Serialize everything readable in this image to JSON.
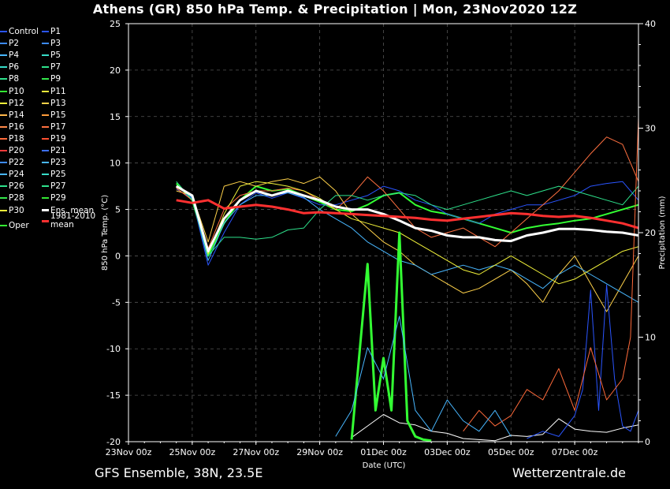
{
  "title": "Athens  (GR)  850 hPa Temp. & Precipitation | Mon, 23Nov2020 12Z",
  "footer": {
    "left": "GFS Ensemble, 38N, 23.5E",
    "right": "Wetterzentrale.de"
  },
  "legend": [
    {
      "label": "Control",
      "color": "#2a55ff"
    },
    {
      "label": "P1",
      "color": "#2a55ff"
    },
    {
      "label": "P2",
      "color": "#3d8bff"
    },
    {
      "label": "P3",
      "color": "#3d8bff"
    },
    {
      "label": "P4",
      "color": "#48b7ff"
    },
    {
      "label": "P5",
      "color": "#37dcc8"
    },
    {
      "label": "P6",
      "color": "#37dcc8"
    },
    {
      "label": "P7",
      "color": "#2ee28c"
    },
    {
      "label": "P8",
      "color": "#2ee28c"
    },
    {
      "label": "P9",
      "color": "#33e64a"
    },
    {
      "label": "P10",
      "color": "#33e633"
    },
    {
      "label": "P11",
      "color": "#f2f23a"
    },
    {
      "label": "P12",
      "color": "#f2f23a"
    },
    {
      "label": "P13",
      "color": "#ffd24a"
    },
    {
      "label": "P14",
      "color": "#ffb84a"
    },
    {
      "label": "P15",
      "color": "#ff9c3a"
    },
    {
      "label": "P16",
      "color": "#ff8a4a"
    },
    {
      "label": "P17",
      "color": "#ff7040"
    },
    {
      "label": "P18",
      "color": "#ff6a3a"
    },
    {
      "label": "P19",
      "color": "#ff5030"
    },
    {
      "label": "P20",
      "color": "#ff3a3a"
    },
    {
      "label": "P21",
      "color": "#3d70ff"
    },
    {
      "label": "P22",
      "color": "#3d8bff"
    },
    {
      "label": "P23",
      "color": "#48b7ff"
    },
    {
      "label": "P24",
      "color": "#48b7ff"
    },
    {
      "label": "P25",
      "color": "#37dcc8"
    },
    {
      "label": "P26",
      "color": "#2ee28c"
    },
    {
      "label": "P27",
      "color": "#2ee28c"
    },
    {
      "label": "P28",
      "color": "#33e64a"
    },
    {
      "label": "P29",
      "color": "#33e633"
    },
    {
      "label": "P30",
      "color": "#f2f23a"
    },
    {
      "label": "Ens. mean",
      "color": "#ffffff"
    },
    {
      "label": "Oper",
      "color": "#33ff33"
    },
    {
      "label": "1981-2010 mean",
      "color": "#ff3030"
    }
  ],
  "chart_data": {
    "type": "line",
    "title": "Athens  (GR)  850 hPa Temp. & Precipitation | Mon, 23Nov2020 12Z",
    "xlabel": "Date (UTC)",
    "ylabel": "850 hPa Temp. (°C)",
    "y2label": "Precipitation (mm)",
    "x_ticks": [
      "23Nov 00z",
      "25Nov 00z",
      "27Nov 00z",
      "29Nov 00z",
      "01Dec 00z",
      "03Dec 00z",
      "05Dec 00z",
      "07Dec 00z"
    ],
    "x_range_hours": [
      0,
      384
    ],
    "ylim": [
      -20,
      25
    ],
    "y_ticks": [
      25,
      20,
      15,
      10,
      5,
      0,
      -5,
      -10,
      -15,
      -20
    ],
    "y2lim": [
      0,
      40
    ],
    "y2_ticks": [
      40,
      30,
      20,
      10,
      0
    ],
    "grid": true,
    "series": [
      {
        "name": "Ens. mean",
        "axis": "temp",
        "color": "#ffffff",
        "x": [
          36,
          48,
          60,
          72,
          84,
          96,
          108,
          120,
          132,
          144,
          156,
          168,
          180,
          192,
          204,
          216,
          228,
          240,
          252,
          264,
          276,
          288,
          300,
          312,
          324,
          336,
          348,
          360,
          372,
          384
        ],
        "values": [
          7.5,
          6.5,
          0.5,
          4.0,
          6.0,
          7.0,
          6.5,
          7.0,
          6.5,
          6.0,
          5.3,
          5.0,
          5.0,
          4.5,
          3.8,
          3.0,
          2.7,
          2.2,
          2.0,
          2.0,
          1.7,
          1.6,
          2.2,
          2.5,
          2.9,
          2.9,
          2.8,
          2.6,
          2.5,
          2.2
        ]
      },
      {
        "name": "1981-2010 mean",
        "axis": "temp",
        "color": "#ff3030",
        "x": [
          36,
          48,
          60,
          72,
          84,
          96,
          108,
          120,
          132,
          144,
          156,
          168,
          180,
          192,
          204,
          216,
          228,
          240,
          252,
          264,
          276,
          288,
          300,
          312,
          324,
          336,
          348,
          360,
          372,
          384
        ],
        "values": [
          6.0,
          5.7,
          6.0,
          5.1,
          5.3,
          5.5,
          5.3,
          5.0,
          4.6,
          4.7,
          4.6,
          4.5,
          4.4,
          4.3,
          4.2,
          4.1,
          3.9,
          3.8,
          4.0,
          4.2,
          4.4,
          4.6,
          4.5,
          4.3,
          4.2,
          4.3,
          4.1,
          3.8,
          3.5,
          3.0
        ]
      },
      {
        "name": "Oper",
        "axis": "temp",
        "color": "#33ff33",
        "x": [
          36,
          48,
          60,
          72,
          84,
          96,
          108,
          120,
          132,
          144,
          156,
          168,
          180,
          192,
          204,
          216,
          228,
          240,
          252,
          264,
          276,
          288,
          300,
          312,
          324,
          336,
          348,
          360,
          372,
          384
        ],
        "values": [
          7.8,
          6.0,
          0.0,
          3.5,
          6.0,
          7.5,
          7.0,
          7.2,
          6.5,
          5.8,
          5.0,
          4.8,
          5.5,
          6.5,
          6.8,
          5.5,
          4.8,
          4.5,
          4.0,
          3.5,
          3.0,
          2.5,
          3.0,
          3.3,
          3.5,
          3.8,
          4.0,
          4.5,
          5.0,
          5.5
        ]
      },
      {
        "name": "P1",
        "axis": "temp",
        "color": "#2a55ff",
        "x": [
          36,
          48,
          60,
          72,
          84,
          96,
          108,
          120,
          132,
          144,
          156,
          168,
          180,
          192,
          204,
          216,
          228,
          240,
          252,
          264,
          276,
          288,
          300,
          312,
          324,
          336,
          348,
          360,
          372,
          384
        ],
        "values": [
          7.2,
          6.2,
          -1.0,
          2.5,
          5.5,
          6.8,
          6.2,
          6.8,
          6.2,
          5.5,
          5.5,
          6.0,
          6.5,
          7.5,
          7.0,
          6.0,
          5.5,
          4.5,
          4.0,
          3.5,
          4.5,
          5.0,
          5.5,
          5.5,
          6.0,
          6.5,
          7.5,
          7.8,
          8.0,
          6.0
        ]
      },
      {
        "name": "P13",
        "axis": "temp",
        "color": "#ffd24a",
        "x": [
          36,
          48,
          60,
          72,
          84,
          96,
          108,
          120,
          132,
          144,
          156,
          168,
          180,
          192,
          204,
          216,
          228,
          240,
          252,
          264,
          276,
          288,
          300,
          312,
          324,
          336,
          348,
          360,
          372,
          384
        ],
        "values": [
          7.0,
          6.5,
          1.5,
          7.5,
          8.0,
          7.5,
          8.0,
          8.3,
          7.8,
          8.5,
          7.0,
          4.5,
          3.0,
          1.5,
          0.5,
          -1.0,
          -2.0,
          -3.0,
          -4.0,
          -3.5,
          -2.5,
          -1.5,
          -3.0,
          -5.0,
          -2.0,
          0.0,
          -3.0,
          -6.0,
          -3.0,
          0.0
        ]
      },
      {
        "name": "P17",
        "axis": "temp",
        "color": "#ff7040",
        "x": [
          36,
          48,
          60,
          72,
          84,
          96,
          108,
          120,
          132,
          144,
          156,
          168,
          180,
          192,
          204,
          216,
          228,
          240,
          252,
          264,
          276,
          288,
          300,
          312,
          324,
          336,
          348,
          360,
          372,
          384
        ],
        "values": [
          7.3,
          6.0,
          0.8,
          5.0,
          6.5,
          7.0,
          7.0,
          7.3,
          7.0,
          6.0,
          5.0,
          6.5,
          8.5,
          7.0,
          5.0,
          3.0,
          2.0,
          2.5,
          3.0,
          2.0,
          1.0,
          2.5,
          4.0,
          5.5,
          7.0,
          9.0,
          11.0,
          12.8,
          12.0,
          8.0
        ]
      },
      {
        "name": "P24",
        "axis": "temp",
        "color": "#48b7ff",
        "x": [
          36,
          48,
          60,
          72,
          84,
          96,
          108,
          120,
          132,
          144,
          156,
          168,
          180,
          192,
          204,
          216,
          228,
          240,
          252,
          264,
          276,
          288,
          300,
          312,
          324,
          336,
          348,
          360,
          372,
          384
        ],
        "values": [
          7.5,
          6.3,
          -0.5,
          3.5,
          5.5,
          6.5,
          6.5,
          6.8,
          6.3,
          5.0,
          4.0,
          3.0,
          1.5,
          0.5,
          -0.5,
          -1.0,
          -2.0,
          -1.5,
          -1.0,
          -1.5,
          -1.0,
          -1.5,
          -2.5,
          -3.5,
          -2.0,
          -1.0,
          -2.0,
          -3.0,
          -4.0,
          -5.0
        ]
      },
      {
        "name": "P26",
        "axis": "temp",
        "color": "#2ee28c",
        "x": [
          36,
          48,
          60,
          72,
          84,
          96,
          108,
          120,
          132,
          144,
          156,
          168,
          180,
          192,
          204,
          216,
          228,
          240,
          252,
          264,
          276,
          288,
          300,
          312,
          324,
          336,
          348,
          360,
          372,
          384
        ],
        "values": [
          8.0,
          6.0,
          0.0,
          2.0,
          2.0,
          1.8,
          2.0,
          2.8,
          3.0,
          5.0,
          6.5,
          6.5,
          6.0,
          6.5,
          6.8,
          6.5,
          5.5,
          5.0,
          5.5,
          6.0,
          6.5,
          7.0,
          6.5,
          7.0,
          7.5,
          7.0,
          6.5,
          6.0,
          5.5,
          7.5
        ]
      },
      {
        "name": "P30",
        "axis": "temp",
        "color": "#f2f23a",
        "x": [
          36,
          48,
          60,
          72,
          84,
          96,
          108,
          120,
          132,
          144,
          156,
          168,
          180,
          192,
          204,
          216,
          228,
          240,
          252,
          264,
          276,
          288,
          300,
          312,
          324,
          336,
          348,
          360,
          372,
          384
        ],
        "values": [
          7.4,
          6.4,
          0.2,
          4.5,
          7.5,
          8.0,
          7.8,
          7.5,
          7.0,
          6.2,
          5.0,
          4.0,
          3.5,
          3.0,
          2.5,
          1.5,
          0.5,
          -0.5,
          -1.5,
          -2.0,
          -1.0,
          0.0,
          -1.0,
          -2.0,
          -3.0,
          -2.5,
          -1.5,
          -0.5,
          0.5,
          1.0
        ]
      },
      {
        "name": "Ens. mean precipitation",
        "axis": "precip",
        "color": "#ffffff",
        "x": [
          168,
          180,
          192,
          204,
          216,
          228,
          240,
          252,
          264,
          276,
          288,
          300,
          312,
          324,
          336,
          348,
          360,
          372,
          384
        ],
        "values": [
          0.4,
          1.5,
          2.6,
          1.8,
          1.6,
          1.0,
          0.8,
          0.3,
          0.2,
          0.1,
          0.6,
          0.5,
          0.7,
          2.2,
          1.2,
          1.0,
          0.9,
          1.3,
          1.6
        ]
      },
      {
        "name": "Oper precipitation",
        "axis": "precip",
        "color": "#33ff33",
        "x": [
          168,
          180,
          186,
          192,
          198,
          204,
          210,
          216,
          222,
          228
        ],
        "values": [
          0.2,
          17.0,
          3.0,
          8.0,
          3.0,
          20.0,
          2.0,
          0.5,
          0.2,
          0.1
        ]
      },
      {
        "name": "P1 precipitation",
        "axis": "precip",
        "color": "#2a55ff",
        "x": [
          300,
          312,
          324,
          336,
          342,
          348,
          354,
          360,
          366,
          372,
          378,
          384
        ],
        "values": [
          0.3,
          1.0,
          0.5,
          2.5,
          5.0,
          14.5,
          3.0,
          15.0,
          6.0,
          1.5,
          1.0,
          3.0
        ]
      },
      {
        "name": "P18 precipitation",
        "axis": "precip",
        "color": "#ff6a3a",
        "x": [
          252,
          264,
          276,
          288,
          300,
          312,
          324,
          336,
          348,
          360,
          372,
          378,
          384
        ],
        "values": [
          1.0,
          3.0,
          1.5,
          2.5,
          5.0,
          4.0,
          7.0,
          3.0,
          9.0,
          4.0,
          6.0,
          10.0,
          31.0
        ]
      },
      {
        "name": "P24 precipitation",
        "axis": "precip",
        "color": "#48b7ff",
        "x": [
          156,
          168,
          180,
          192,
          204,
          216,
          228,
          240,
          252,
          264,
          276,
          288
        ],
        "values": [
          0.5,
          3.0,
          9.0,
          6.0,
          12.0,
          3.0,
          1.0,
          4.0,
          2.0,
          1.0,
          3.0,
          0.5
        ]
      }
    ]
  }
}
